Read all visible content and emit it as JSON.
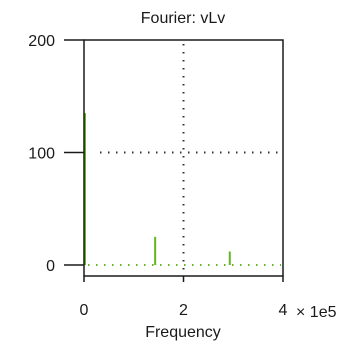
{
  "chart_data": {
    "type": "bar",
    "title": "Fourier: vLv",
    "xlabel": "Frequency",
    "ylabel": "",
    "xlim": [
      0,
      4
    ],
    "ylim": [
      0,
      200
    ],
    "x_ticks": [
      "0",
      "2",
      "4"
    ],
    "y_ticks": [
      "0",
      "100",
      "200"
    ],
    "x_multiplier_label": "× 1e5",
    "grid": true,
    "series": [
      {
        "x": [
          0,
          1.43,
          2.93
        ],
        "values": [
          135,
          25,
          12
        ],
        "color": "#63b521"
      }
    ]
  }
}
